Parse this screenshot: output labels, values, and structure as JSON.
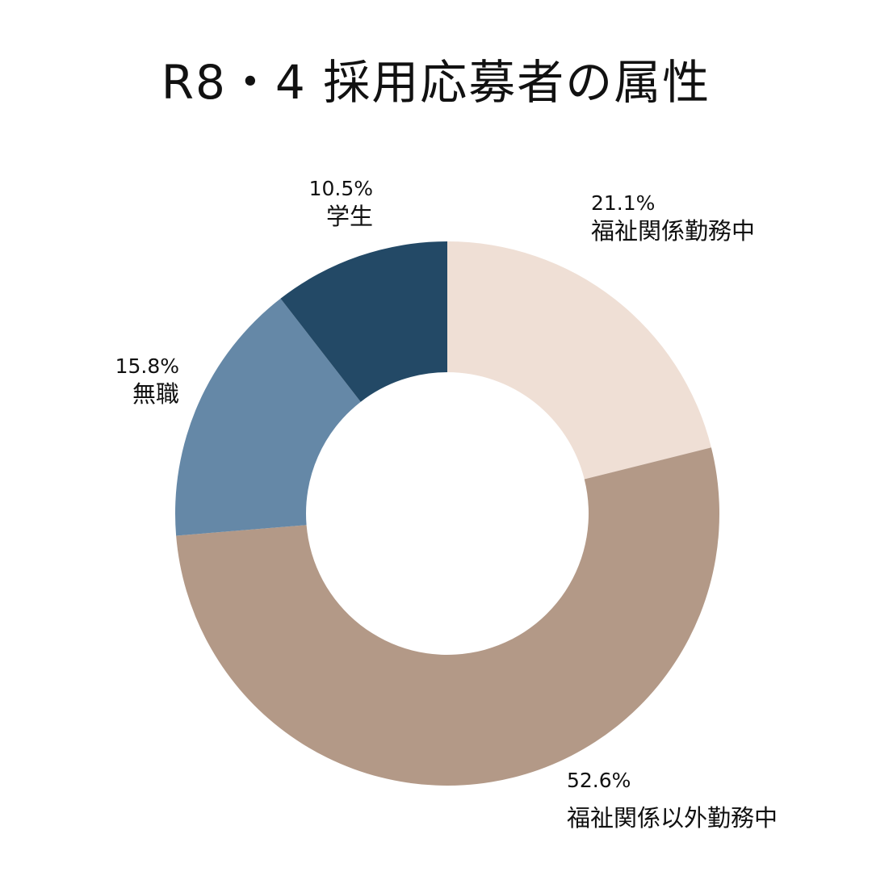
{
  "title": "R8・4 採用応募者の属性",
  "chart_data": {
    "type": "donut",
    "title": "R8・4 採用応募者の属性",
    "unit": "%",
    "slices": [
      {
        "label": "福祉関係勤務中",
        "value": 21.1,
        "percent_text": "21.1%",
        "color": "#efdfd5"
      },
      {
        "label": "福祉関係以外勤務中",
        "value": 52.6,
        "percent_text": "52.6%",
        "color": "#b39987"
      },
      {
        "label": "無職",
        "value": 15.8,
        "percent_text": "15.8%",
        "color": "#6588a7"
      },
      {
        "label": "学生",
        "value": 10.5,
        "percent_text": "10.5%",
        "color": "#234966"
      }
    ],
    "start_angle": "12 o'clock",
    "direction": "clockwise"
  }
}
